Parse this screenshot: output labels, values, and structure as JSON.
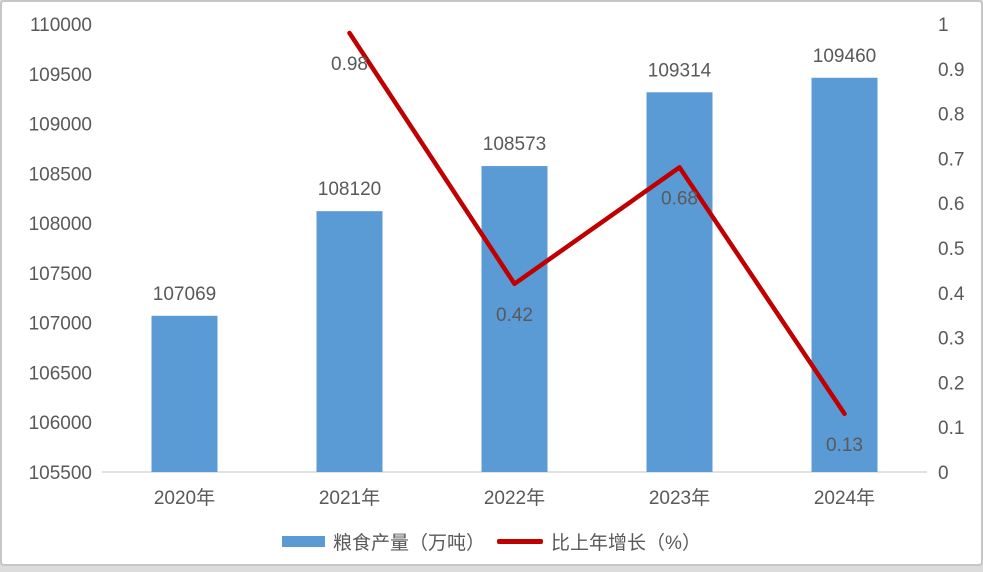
{
  "chart_data": {
    "type": "combo",
    "title": "",
    "categories": [
      "2020年",
      "2021年",
      "2022年",
      "2023年",
      "2024年"
    ],
    "series": [
      {
        "name": "粮食产量（万吨）",
        "type": "bar",
        "axis": "left",
        "color": "#5B9BD5",
        "values": [
          107069,
          108120,
          108573,
          109314,
          109460
        ],
        "data_labels": [
          "107069",
          "108120",
          "108573",
          "109314",
          "109460"
        ]
      },
      {
        "name": "比上年增长（%）",
        "type": "line",
        "axis": "right",
        "color": "#C00000",
        "values": [
          null,
          0.98,
          0.42,
          0.68,
          0.13
        ],
        "data_labels": [
          null,
          "0.98",
          "0.42",
          "0.68",
          "0.13"
        ]
      }
    ],
    "left_axis": {
      "min": 105500,
      "max": 110000,
      "step": 500,
      "tick_labels": [
        "105500",
        "106000",
        "106500",
        "107000",
        "107500",
        "108000",
        "108500",
        "109000",
        "109500",
        "110000"
      ]
    },
    "right_axis": {
      "min": 0,
      "max": 1,
      "step": 0.1,
      "tick_labels": [
        "0",
        "0.1",
        "0.2",
        "0.3",
        "0.4",
        "0.5",
        "0.6",
        "0.7",
        "0.8",
        "0.9",
        "1"
      ]
    },
    "legend_position": "bottom",
    "grid": false,
    "colors": {
      "text": "#595959",
      "axis_line": "#d9d9d9",
      "bar": "#5B9BD5",
      "line": "#C00000"
    }
  }
}
